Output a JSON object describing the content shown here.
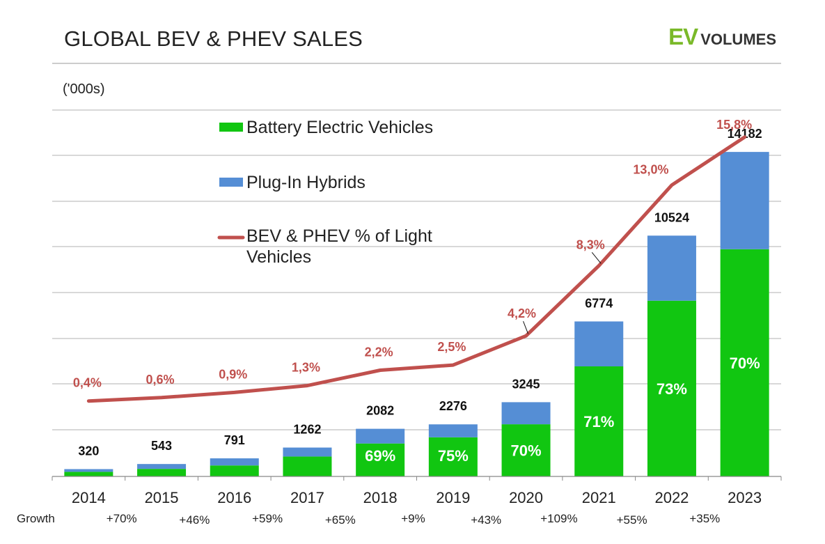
{
  "header": {
    "title": "GLOBAL BEV & PHEV SALES",
    "brand_ev": "EV",
    "brand_volumes": "VOLUMES"
  },
  "colors": {
    "bev": "#11c611",
    "phev": "#558ed5",
    "line": "#c0504d",
    "grid": "#b0b0b0"
  },
  "chart_data": {
    "type": "bar",
    "unit_label": "('000s)",
    "categories": [
      "2014",
      "2015",
      "2016",
      "2017",
      "2018",
      "2019",
      "2020",
      "2021",
      "2022",
      "2023"
    ],
    "totals": [
      320,
      543,
      791,
      1262,
      2082,
      2276,
      3245,
      6774,
      10524,
      14182
    ],
    "total_labels": [
      "320",
      "543",
      "791",
      "1262",
      "2082",
      "2276",
      "3245",
      "6774",
      "10524",
      "14182"
    ],
    "series": [
      {
        "name": "Battery Electric Vehicles",
        "type": "bar",
        "stack": "sales",
        "values": [
          200,
          330,
          480,
          870,
          1440,
          1710,
          2280,
          4810,
          7680,
          9930
        ]
      },
      {
        "name": "Plug-In Hybrids",
        "type": "bar",
        "stack": "sales",
        "values": [
          120,
          213,
          311,
          392,
          642,
          566,
          965,
          1964,
          2844,
          4252
        ]
      },
      {
        "name": "BEV & PHEV % of Light Vehicles",
        "type": "line",
        "axis": "secondary",
        "values": [
          0.4,
          0.6,
          0.9,
          1.3,
          2.2,
          2.5,
          4.2,
          8.3,
          13.0,
          15.8
        ],
        "labels": [
          "0,4%",
          "0,6%",
          "0,9%",
          "1,3%",
          "2,2%",
          "2,5%",
          "4,2%",
          "8,3%",
          "13,0%",
          "15,8%"
        ]
      }
    ],
    "bev_share_labels": [
      "",
      "",
      "",
      "",
      "69%",
      "75%",
      "70%",
      "71%",
      "73%",
      "70%"
    ],
    "growth_label": "Growth",
    "growth": [
      "+70%",
      "+46%",
      "+59%",
      "+65%",
      "+9%",
      "+43%",
      "+109%",
      "+55%",
      "+35%"
    ],
    "ylim": [
      0,
      16000
    ],
    "y2lim": [
      -4.0,
      17.5
    ],
    "grid": true,
    "legend_position": "top-left inside plot"
  }
}
